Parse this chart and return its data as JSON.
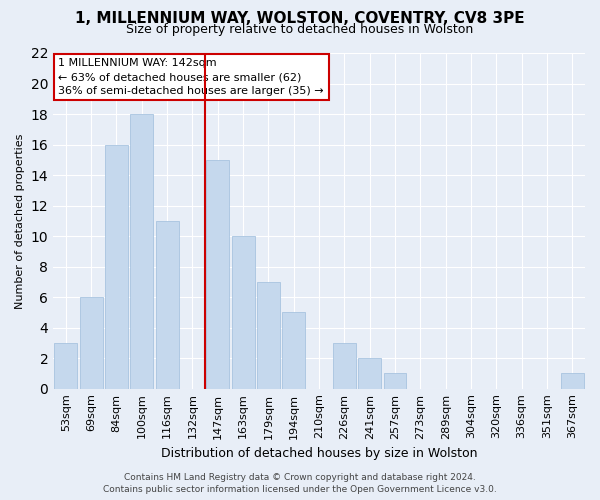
{
  "title": "1, MILLENNIUM WAY, WOLSTON, COVENTRY, CV8 3PE",
  "subtitle": "Size of property relative to detached houses in Wolston",
  "xlabel": "Distribution of detached houses by size in Wolston",
  "ylabel": "Number of detached properties",
  "categories": [
    "53sqm",
    "69sqm",
    "84sqm",
    "100sqm",
    "116sqm",
    "132sqm",
    "147sqm",
    "163sqm",
    "179sqm",
    "194sqm",
    "210sqm",
    "226sqm",
    "241sqm",
    "257sqm",
    "273sqm",
    "289sqm",
    "304sqm",
    "320sqm",
    "336sqm",
    "351sqm",
    "367sqm"
  ],
  "values": [
    3,
    6,
    16,
    18,
    11,
    0,
    15,
    10,
    7,
    5,
    0,
    3,
    2,
    1,
    0,
    0,
    0,
    0,
    0,
    0,
    1
  ],
  "bar_color": "#c5d8ed",
  "bar_edge_color": "#a8c4e0",
  "background_color": "#e8eef7",
  "grid_color": "#ffffff",
  "vline_color": "#cc0000",
  "vline_x": 5.5,
  "annotation_title": "1 MILLENNIUM WAY: 142sqm",
  "annotation_line1": "← 63% of detached houses are smaller (62)",
  "annotation_line2": "36% of semi-detached houses are larger (35) →",
  "annotation_box_edge_color": "#cc0000",
  "annotation_box_face_color": "#ffffff",
  "footer1": "Contains HM Land Registry data © Crown copyright and database right 2024.",
  "footer2": "Contains public sector information licensed under the Open Government Licence v3.0.",
  "ylim": [
    0,
    22
  ],
  "yticks": [
    0,
    2,
    4,
    6,
    8,
    10,
    12,
    14,
    16,
    18,
    20,
    22
  ],
  "title_fontsize": 11,
  "subtitle_fontsize": 9,
  "xlabel_fontsize": 9,
  "ylabel_fontsize": 8,
  "tick_fontsize": 8,
  "ann_fontsize": 8,
  "footer_fontsize": 6.5
}
